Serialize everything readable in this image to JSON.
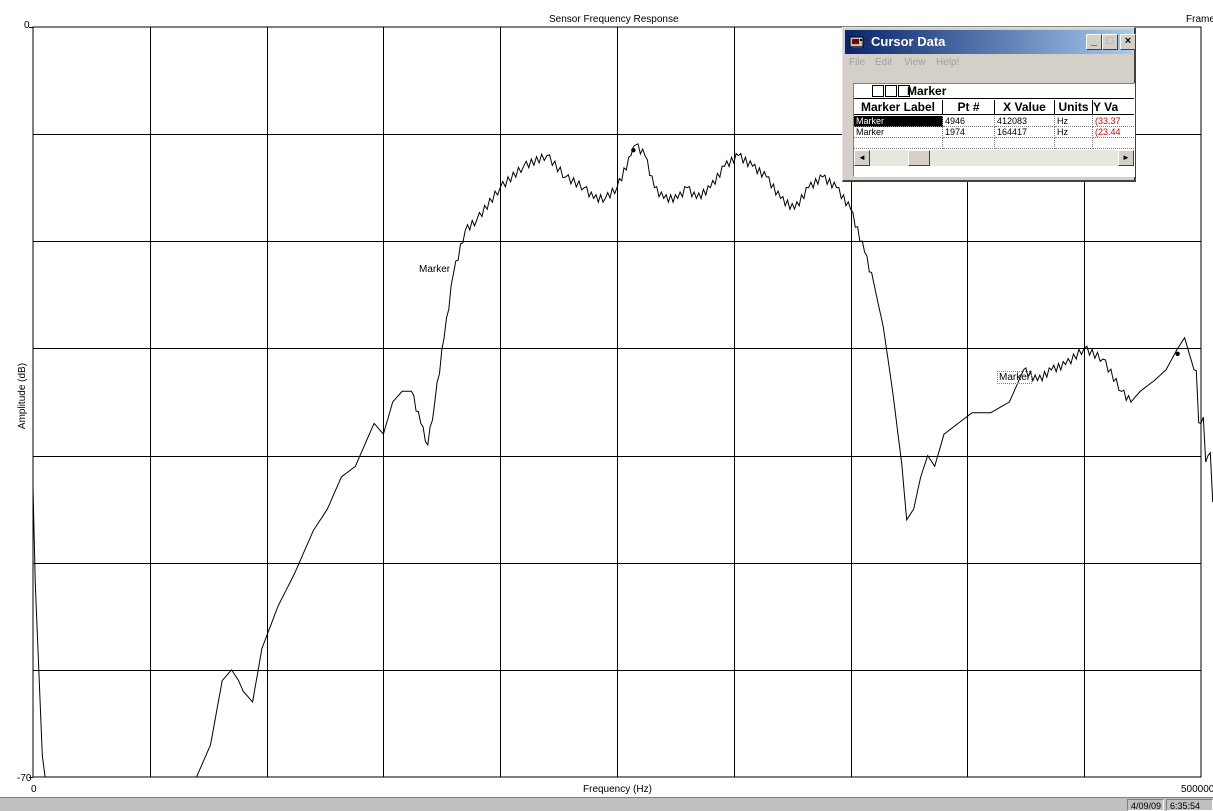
{
  "chart_data": {
    "type": "line",
    "title": "Sensor Frequency Response",
    "xlabel": "Frequency (Hz)",
    "ylabel": "Amplitude (dB)",
    "xlim": [
      0,
      500000
    ],
    "ylim": [
      -70,
      0
    ],
    "x_tick_labels": [
      "0",
      "500000"
    ],
    "y_tick_labels": [
      "0",
      "-70"
    ],
    "grid": true,
    "series": [
      {
        "color": "#000000",
        "points": [
          [
            0,
            -43
          ],
          [
            1000,
            -52
          ],
          [
            2500,
            -60
          ],
          [
            4000,
            -68
          ],
          [
            5200,
            -70
          ],
          [
            70000,
            -70
          ],
          [
            76000,
            -67
          ],
          [
            81000,
            -61
          ],
          [
            85000,
            -60
          ],
          [
            88000,
            -61
          ],
          [
            90000,
            -62
          ],
          [
            94000,
            -63
          ],
          [
            98000,
            -58
          ],
          [
            105000,
            -54
          ],
          [
            112000,
            -51
          ],
          [
            120000,
            -47
          ],
          [
            126000,
            -45
          ],
          [
            132000,
            -42
          ],
          [
            138000,
            -41
          ],
          [
            142000,
            -39
          ],
          [
            146000,
            -37
          ],
          [
            150000,
            -38
          ],
          [
            154000,
            -35
          ],
          [
            158000,
            -34
          ],
          [
            162000,
            -34
          ],
          [
            166000,
            -37
          ],
          [
            169000,
            -39
          ],
          [
            172000,
            -35
          ],
          [
            176000,
            -29
          ],
          [
            180000,
            -23
          ],
          [
            185000,
            -19
          ],
          [
            190000,
            -18
          ],
          [
            200000,
            -15
          ],
          [
            210000,
            -13
          ],
          [
            220000,
            -12
          ],
          [
            228000,
            -14
          ],
          [
            236000,
            -15
          ],
          [
            240000,
            -16
          ],
          [
            245000,
            -16
          ],
          [
            250000,
            -15
          ],
          [
            256000,
            -12
          ],
          [
            258000,
            -11
          ],
          [
            262000,
            -12
          ],
          [
            266000,
            -15
          ],
          [
            270000,
            -16
          ],
          [
            276000,
            -16
          ],
          [
            280000,
            -15
          ],
          [
            284000,
            -16
          ],
          [
            290000,
            -15
          ],
          [
            296000,
            -13
          ],
          [
            302000,
            -12
          ],
          [
            308000,
            -13
          ],
          [
            314000,
            -14
          ],
          [
            320000,
            -16
          ],
          [
            326000,
            -17
          ],
          [
            332000,
            -15
          ],
          [
            338000,
            -14
          ],
          [
            344000,
            -15
          ],
          [
            350000,
            -17
          ],
          [
            356000,
            -21
          ],
          [
            360000,
            -24
          ],
          [
            364000,
            -28
          ],
          [
            368000,
            -34
          ],
          [
            372000,
            -41
          ],
          [
            374000,
            -46
          ],
          [
            377000,
            -45
          ],
          [
            380000,
            -42
          ],
          [
            383000,
            -40
          ],
          [
            386000,
            -41
          ],
          [
            390000,
            -38
          ],
          [
            396000,
            -37
          ],
          [
            402000,
            -36
          ],
          [
            410000,
            -36
          ],
          [
            418000,
            -35
          ],
          [
            424000,
            -32
          ],
          [
            430000,
            -33
          ],
          [
            436000,
            -32
          ],
          [
            442000,
            -31.5
          ],
          [
            450000,
            -30
          ],
          [
            458000,
            -31
          ],
          [
            466000,
            -34
          ],
          [
            470000,
            -35
          ],
          [
            474000,
            -34
          ],
          [
            480000,
            -33
          ],
          [
            485000,
            -32
          ],
          [
            490000,
            -30
          ],
          [
            493000,
            -29
          ],
          [
            497000,
            -32
          ],
          [
            500000,
            -37
          ],
          [
            503000,
            -40
          ],
          [
            506000,
            -44
          ],
          [
            509000,
            -48
          ],
          [
            511000,
            -52
          ]
        ]
      }
    ],
    "annotations": [
      {
        "text": "Marker",
        "x": 257000,
        "y": -11.5
      },
      {
        "text": "Marker",
        "x": 490000,
        "y": -30.5
      }
    ]
  },
  "corner_label": "Frame",
  "statusbar": {
    "date": "4/09/09",
    "time": "6:35:54 PM"
  },
  "cursor_window": {
    "title": "Cursor Data",
    "buttons": {
      "minimize": "_",
      "maximize": "□",
      "close": "×"
    },
    "menu": [
      "File",
      "Edit",
      "View",
      "Help!"
    ],
    "group_label": "Marker",
    "columns": [
      "Marker Label",
      "Pt #",
      "X Value",
      "Units",
      "Y Va"
    ],
    "rows": [
      {
        "label": "Marker",
        "pt": "4946",
        "x": "412083",
        "units": "Hz",
        "y": "(33.37"
      },
      {
        "label": "Marker",
        "pt": "1974",
        "x": "164417",
        "units": "Hz",
        "y": "(23.44"
      }
    ],
    "scroll_left": "◄",
    "scroll_right": "►"
  }
}
